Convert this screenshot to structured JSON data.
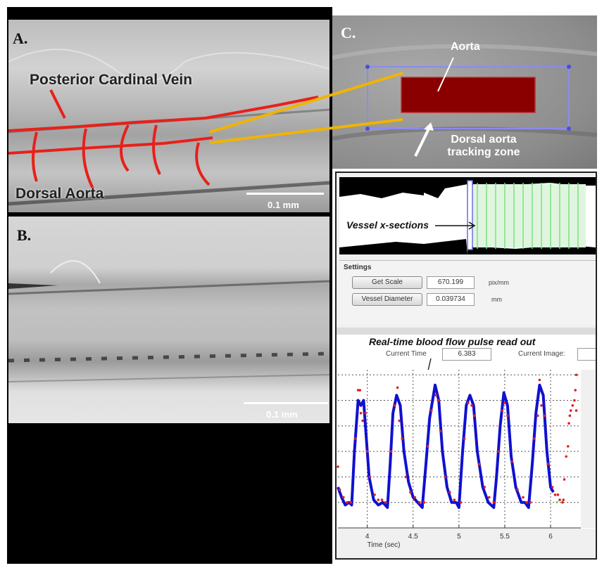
{
  "panel_a": {
    "label": "A.",
    "posterior_cardinal_vein": "Posterior Cardinal Vein",
    "dorsal_aorta": "Dorsal Aorta",
    "scale": "0.1 mm"
  },
  "panel_b": {
    "label": "B.",
    "scale": "0.1 mm"
  },
  "panel_c": {
    "label": "C.",
    "aorta": "Aorta",
    "tracking_zone_line1": "Dorsal aorta",
    "tracking_zone_line2": "tracking zone"
  },
  "software": {
    "xsections_label": "Vessel x-sections",
    "settings_title": "Settings",
    "get_scale_button": "Get Scale",
    "scale_value": "670.199",
    "scale_unit": "pix/mm",
    "vessel_diameter_button": "Vessel Diameter",
    "diameter_value": "0.039734",
    "diameter_unit": "mm",
    "readout_title": "Real-time blood flow pulse read out",
    "current_time_label": "Current Time",
    "current_time_value": "6.383",
    "current_image_label": "Current Image:",
    "current_image_value": ""
  },
  "colors": {
    "vessel_overlay": "#e8201a",
    "connector": "#f0b400",
    "tracking_box": "#8a8cf0",
    "aorta_fill": "#8a0000",
    "xsection_line": "#7fe07f",
    "trace": "#1010d0",
    "points": "#e02020",
    "marker": "#40e040"
  },
  "chart_data": {
    "type": "line",
    "xlabel": "Time (sec)",
    "ylabel": "",
    "xlim": [
      3.68,
      6.33
    ],
    "ylim": [
      0,
      6.2
    ],
    "xticks": [
      4,
      4.5,
      5,
      5.5,
      6
    ],
    "xtick_labels": [
      "4",
      "4.5",
      "5",
      "5.5",
      "6"
    ],
    "yticks": [
      1,
      2,
      3,
      4,
      5,
      6
    ],
    "grid": true,
    "series": [
      {
        "style": "thick-line",
        "values": [
          [
            3.68,
            1.6
          ],
          [
            3.72,
            1.2
          ],
          [
            3.76,
            0.9
          ],
          [
            3.8,
            1.0
          ],
          [
            3.83,
            0.9
          ],
          [
            3.86,
            3.0
          ],
          [
            3.9,
            5.0
          ],
          [
            3.93,
            4.8
          ],
          [
            3.96,
            5.0
          ],
          [
            3.99,
            3.5
          ],
          [
            4.02,
            2.0
          ],
          [
            4.07,
            1.1
          ],
          [
            4.12,
            0.9
          ],
          [
            4.17,
            1.0
          ],
          [
            4.22,
            0.8
          ],
          [
            4.25,
            2.5
          ],
          [
            4.28,
            4.5
          ],
          [
            4.32,
            5.2
          ],
          [
            4.36,
            4.8
          ],
          [
            4.4,
            3.0
          ],
          [
            4.45,
            1.8
          ],
          [
            4.5,
            1.2
          ],
          [
            4.55,
            1.0
          ],
          [
            4.6,
            0.8
          ],
          [
            4.64,
            2.5
          ],
          [
            4.68,
            4.3
          ],
          [
            4.74,
            5.6
          ],
          [
            4.78,
            5.0
          ],
          [
            4.82,
            3.0
          ],
          [
            4.87,
            1.6
          ],
          [
            4.92,
            1.0
          ],
          [
            4.97,
            1.0
          ],
          [
            5.0,
            0.8
          ],
          [
            5.04,
            3.0
          ],
          [
            5.08,
            4.8
          ],
          [
            5.12,
            5.2
          ],
          [
            5.16,
            4.8
          ],
          [
            5.2,
            3.0
          ],
          [
            5.26,
            1.6
          ],
          [
            5.32,
            1.0
          ],
          [
            5.38,
            0.8
          ],
          [
            5.41,
            2.0
          ],
          [
            5.45,
            4.0
          ],
          [
            5.49,
            5.3
          ],
          [
            5.53,
            4.8
          ],
          [
            5.57,
            2.8
          ],
          [
            5.62,
            1.6
          ],
          [
            5.68,
            1.0
          ],
          [
            5.72,
            1.0
          ],
          [
            5.76,
            0.8
          ],
          [
            5.8,
            2.5
          ],
          [
            5.84,
            4.5
          ],
          [
            5.88,
            5.6
          ],
          [
            5.92,
            5.2
          ],
          [
            5.96,
            3.0
          ],
          [
            6.0,
            1.6
          ],
          [
            6.03,
            1.4
          ]
        ]
      },
      {
        "style": "dots",
        "values": [
          [
            3.68,
            2.4
          ],
          [
            3.7,
            1.5
          ],
          [
            3.74,
            1.2
          ],
          [
            3.78,
            1.0
          ],
          [
            3.82,
            1.0
          ],
          [
            3.87,
            3.5
          ],
          [
            3.9,
            5.4
          ],
          [
            3.92,
            5.4
          ],
          [
            3.93,
            4.5
          ],
          [
            3.95,
            4.2
          ],
          [
            3.98,
            4.5
          ],
          [
            4.0,
            3.0
          ],
          [
            4.03,
            2.0
          ],
          [
            4.08,
            1.3
          ],
          [
            4.12,
            1.1
          ],
          [
            4.16,
            1.1
          ],
          [
            4.2,
            1.0
          ],
          [
            4.26,
            3.0
          ],
          [
            4.3,
            4.8
          ],
          [
            4.33,
            5.5
          ],
          [
            4.35,
            4.2
          ],
          [
            4.38,
            3.5
          ],
          [
            4.42,
            2.0
          ],
          [
            4.47,
            1.4
          ],
          [
            4.52,
            1.2
          ],
          [
            4.57,
            1.0
          ],
          [
            4.62,
            1.0
          ],
          [
            4.66,
            3.2
          ],
          [
            4.7,
            4.6
          ],
          [
            4.75,
            5.2
          ],
          [
            4.78,
            5.0
          ],
          [
            4.8,
            3.8
          ],
          [
            4.85,
            2.0
          ],
          [
            4.9,
            1.4
          ],
          [
            4.95,
            1.1
          ],
          [
            5.02,
            1.0
          ],
          [
            5.06,
            3.5
          ],
          [
            5.1,
            4.9
          ],
          [
            5.14,
            4.8
          ],
          [
            5.17,
            4.4
          ],
          [
            5.22,
            2.5
          ],
          [
            5.28,
            1.6
          ],
          [
            5.33,
            1.2
          ],
          [
            5.38,
            1.0
          ],
          [
            5.43,
            3.0
          ],
          [
            5.47,
            4.6
          ],
          [
            5.5,
            4.9
          ],
          [
            5.53,
            4.4
          ],
          [
            5.58,
            2.6
          ],
          [
            5.64,
            1.5
          ],
          [
            5.7,
            1.2
          ],
          [
            5.74,
            1.0
          ],
          [
            5.78,
            1.0
          ],
          [
            5.82,
            3.5
          ],
          [
            5.86,
            4.4
          ],
          [
            5.88,
            5.8
          ],
          [
            5.9,
            4.8
          ],
          [
            5.93,
            4.4
          ],
          [
            5.97,
            2.5
          ],
          [
            6.02,
            1.6
          ],
          [
            6.05,
            1.3
          ],
          [
            6.08,
            1.3
          ],
          [
            6.1,
            1.1
          ],
          [
            6.13,
            1.0
          ],
          [
            6.14,
            1.1
          ],
          [
            6.15,
            1.9
          ],
          [
            6.17,
            2.8
          ],
          [
            6.19,
            3.2
          ],
          [
            6.2,
            4.1
          ],
          [
            6.21,
            4.4
          ],
          [
            6.22,
            4.6
          ],
          [
            6.24,
            4.8
          ],
          [
            6.26,
            5.0
          ],
          [
            6.27,
            5.4
          ],
          [
            6.28,
            6.0
          ],
          [
            6.28,
            4.6
          ]
        ]
      },
      {
        "style": "marker",
        "values": [
          [
            6.07,
            0.95
          ]
        ]
      }
    ]
  }
}
